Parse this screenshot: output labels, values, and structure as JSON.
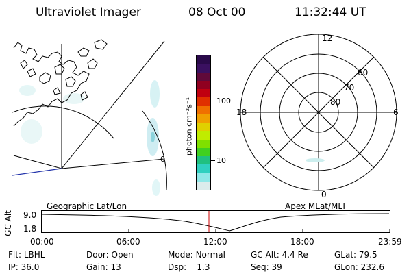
{
  "header": {
    "title": "Ultraviolet Imager",
    "date": "08 Oct 00",
    "time": "11:32:44 UT"
  },
  "map_panel": {
    "corner_label": "0"
  },
  "colorbar": {
    "unit_label": "photon cm⁻²s⁻¹",
    "ticks": [
      "100",
      "10"
    ],
    "colors": [
      "#2a0a4a",
      "#3a1060",
      "#600a3a",
      "#900020",
      "#c00010",
      "#e03000",
      "#f07000",
      "#f0a000",
      "#e0d000",
      "#c0ec00",
      "#80e000",
      "#40d020",
      "#20c080",
      "#30d0c0",
      "#90e8e8",
      "#dcecec"
    ]
  },
  "polar_plot": {
    "mlt_labels": {
      "top": "12",
      "left": "18",
      "right": "6",
      "bottom": "0"
    },
    "lat_labels": [
      "60",
      "70",
      "80"
    ]
  },
  "timeline": {
    "left_label": "Geographic Lat/Lon",
    "right_label": "Apex MLat/MLT",
    "axis_title": "GC Alt",
    "y_ticks": [
      "9.0",
      "1.8"
    ],
    "x_ticks": [
      "00:00",
      "06:00",
      "12:00",
      "18:00",
      "23:59"
    ],
    "current_time_color": "#cc0000"
  },
  "status": {
    "row1": [
      {
        "key": "Flt:",
        "value": "LBHL"
      },
      {
        "key": "Door:",
        "value": "Open"
      },
      {
        "key": "Mode:",
        "value": "Normal"
      },
      {
        "key": "GC Alt:",
        "value": "4.4 Re"
      },
      {
        "key": "GLat:",
        "value": "79.5"
      }
    ],
    "row2": [
      {
        "key": "IP:",
        "value": "36.0"
      },
      {
        "key": "Gain:",
        "value": "13"
      },
      {
        "key": "Dsp:",
        "value": "1.3"
      },
      {
        "key": "Seq:",
        "value": "39"
      },
      {
        "key": "GLon:",
        "value": "232.6"
      }
    ]
  }
}
